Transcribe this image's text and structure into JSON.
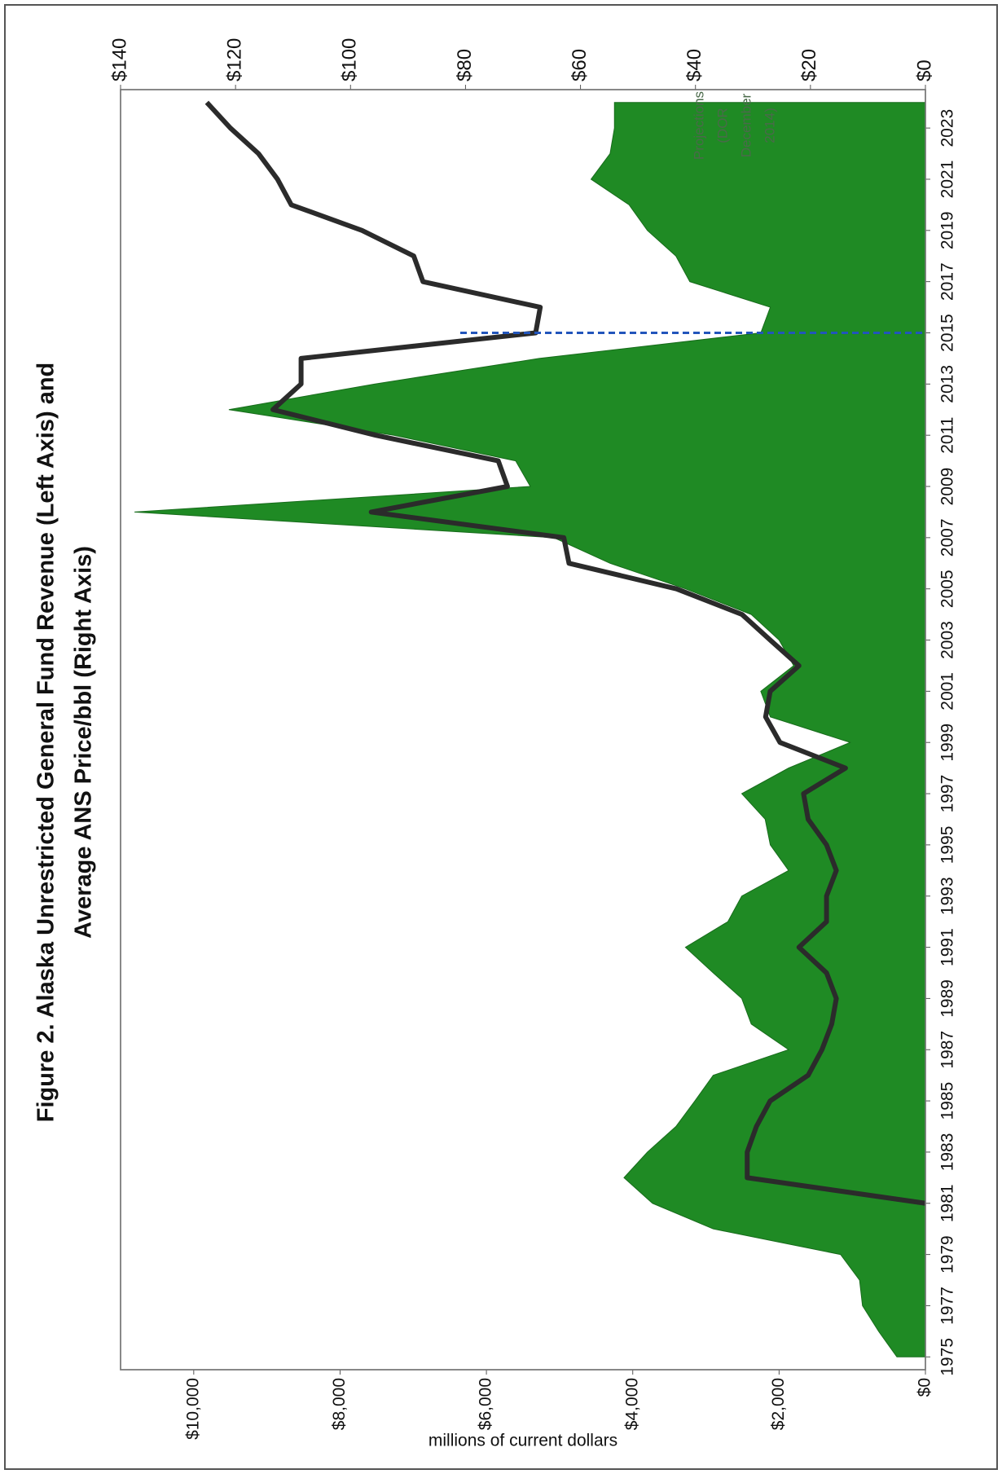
{
  "chart_data": {
    "type": "area-line",
    "title": [
      "Figure 2. Alaska Unrestricted General Fund Revenue (Left Axis) and",
      "Average ANS Price/bbl (Right Axis)"
    ],
    "y_axis_label": "millions of current dollars",
    "annotation": [
      "Projections",
      "(DOR",
      "December",
      "2014)"
    ],
    "annotation_x": 2015,
    "x": [
      1975,
      1976,
      1977,
      1978,
      1979,
      1980,
      1981,
      1982,
      1983,
      1984,
      1985,
      1986,
      1987,
      1988,
      1989,
      1990,
      1991,
      1992,
      1993,
      1994,
      1995,
      1996,
      1997,
      1998,
      1999,
      2000,
      2001,
      2002,
      2003,
      2004,
      2005,
      2006,
      2007,
      2008,
      2009,
      2010,
      2011,
      2012,
      2013,
      2014,
      2015,
      2016,
      2017,
      2018,
      2019,
      2020,
      2021,
      2022,
      2023,
      2024
    ],
    "series": [
      {
        "name": "Unrestricted General Fund Revenue",
        "color": "#1f8a24",
        "axis": "y",
        "values": [
          390,
          640,
          860,
          900,
          1160,
          2900,
          3730,
          4120,
          3800,
          3410,
          3150,
          2900,
          1870,
          2380,
          2510,
          2900,
          3280,
          2700,
          2510,
          1870,
          2120,
          2190,
          2510,
          1870,
          1030,
          2120,
          2250,
          1800,
          2000,
          2380,
          3280,
          4310,
          5080,
          10810,
          5400,
          5600,
          7270,
          9520,
          7530,
          5280,
          2250,
          2120,
          3220,
          3410,
          3800,
          4050,
          4570,
          4310,
          4250,
          4250
        ]
      },
      {
        "name": "Average ANS Price/bbl",
        "color": "#2b2b2b",
        "axis": "y2",
        "values": [
          null,
          null,
          null,
          null,
          null,
          null,
          0,
          31,
          31,
          29.4,
          27,
          20.4,
          18,
          16.3,
          15.5,
          17.2,
          22,
          17.2,
          17.2,
          15.5,
          17.2,
          20.4,
          21.2,
          13.9,
          25.3,
          27.8,
          27,
          22,
          27,
          31.9,
          43.3,
          62,
          62.9,
          96.4,
          72.7,
          74.3,
          95.6,
          113.5,
          108.6,
          108.6,
          67.8,
          67,
          87.4,
          89,
          98,
          110.3,
          112.7,
          116,
          120.9,
          125
        ]
      }
    ],
    "xlim": [
      1974.5,
      2024.5
    ],
    "xticks": [
      1975,
      1977,
      1979,
      1981,
      1983,
      1985,
      1987,
      1989,
      1991,
      1993,
      1995,
      1997,
      1999,
      2001,
      2003,
      2005,
      2007,
      2009,
      2011,
      2013,
      2015,
      2017,
      2019,
      2021,
      2023
    ],
    "ylim": [
      0,
      11000
    ],
    "yticks": [
      {
        "value": 0,
        "label": "$0"
      },
      {
        "value": 2000,
        "label": "$2,000"
      },
      {
        "value": 4000,
        "label": "$4,000"
      },
      {
        "value": 6000,
        "label": "$6,000"
      },
      {
        "value": 8000,
        "label": "$8,000"
      },
      {
        "value": 10000,
        "label": "$10,000"
      }
    ],
    "y2lim": [
      0,
      140
    ],
    "y2ticks": [
      {
        "value": 0,
        "label": "$0"
      },
      {
        "value": 20,
        "label": "$20"
      },
      {
        "value": 40,
        "label": "$40"
      },
      {
        "value": 60,
        "label": "$60"
      },
      {
        "value": 80,
        "label": "$80"
      },
      {
        "value": 100,
        "label": "$100"
      },
      {
        "value": 120,
        "label": "$120"
      },
      {
        "value": 140,
        "label": "$140"
      }
    ]
  }
}
